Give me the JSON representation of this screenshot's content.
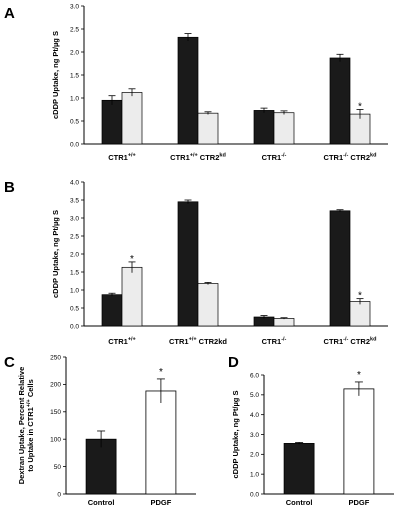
{
  "chart_data": [
    {
      "panel": "A",
      "type": "bar",
      "ylabel": "cDDP Uptake, ng Pt/µg S",
      "ylim": [
        0,
        3.0
      ],
      "yticks": [
        "0.0",
        "0.5",
        "1.0",
        "1.5",
        "2.0",
        "2.5",
        "3.0"
      ],
      "categories": [
        {
          "base": "CTR1",
          "sup": "+/+",
          "tail": "",
          "tail_sup": ""
        },
        {
          "base": "CTR1",
          "sup": "+/+",
          "tail": " CTR2",
          "tail_sup": "kd"
        },
        {
          "base": "CTR1",
          "sup": "-/-",
          "tail": "",
          "tail_sup": ""
        },
        {
          "base": "CTR1",
          "sup": "-/-",
          "tail": " CTR2",
          "tail_sup": "kd"
        }
      ],
      "series": [
        {
          "color": "#1a1a1a",
          "values": [
            0.95,
            2.32,
            0.73,
            1.87
          ],
          "errors": [
            0.1,
            0.08,
            0.05,
            0.08
          ]
        },
        {
          "color": "#ececec",
          "values": [
            1.12,
            0.67,
            0.68,
            0.65
          ],
          "errors": [
            0.08,
            0.03,
            0.04,
            0.1
          ]
        }
      ],
      "significance": [
        {
          "category": 3,
          "series": 1,
          "label": "*"
        }
      ]
    },
    {
      "panel": "B",
      "type": "bar",
      "ylabel": "cDDP Uptake, ng Pt/µg S",
      "ylim": [
        0,
        4.0
      ],
      "yticks": [
        "0.0",
        "0.5",
        "1.0",
        "1.5",
        "2.0",
        "2.5",
        "3.0",
        "3.5",
        "4.0"
      ],
      "categories": [
        {
          "base": "CTR1",
          "sup": "+/+",
          "tail": "",
          "tail_sup": ""
        },
        {
          "base": "CTR1",
          "sup": "+/+",
          "tail": " CTR2kd",
          "tail_sup": ""
        },
        {
          "base": "CTR1",
          "sup": "-/-",
          "tail": "",
          "tail_sup": ""
        },
        {
          "base": "CTR1",
          "sup": "-/-",
          "tail": " CTR2",
          "tail_sup": "kd"
        }
      ],
      "series": [
        {
          "color": "#1a1a1a",
          "values": [
            0.87,
            3.45,
            0.25,
            3.2
          ],
          "errors": [
            0.04,
            0.05,
            0.04,
            0.03
          ]
        },
        {
          "color": "#ececec",
          "values": [
            1.63,
            1.18,
            0.21,
            0.68
          ],
          "errors": [
            0.15,
            0.03,
            0.02,
            0.08
          ]
        }
      ],
      "significance": [
        {
          "category": 0,
          "series": 1,
          "label": "*"
        },
        {
          "category": 3,
          "series": 1,
          "label": "*"
        }
      ]
    },
    {
      "panel": "C",
      "type": "bar",
      "ylabel_lines": [
        "Dextran Uptake, Percent Relative",
        "to Uptake in CTR1"
      ],
      "ylabel_sup": "+/+",
      "ylabel_tail": " Cells",
      "ylim": [
        0,
        250
      ],
      "yticks": [
        "0",
        "50",
        "100",
        "150",
        "200",
        "250"
      ],
      "categories": [
        "Control",
        "PDGF"
      ],
      "bar_colors": [
        "#1a1a1a",
        "#ffffff"
      ],
      "values": [
        100,
        188
      ],
      "errors": [
        15,
        22
      ],
      "significance": [
        {
          "category": 1,
          "label": "*"
        }
      ]
    },
    {
      "panel": "D",
      "type": "bar",
      "ylabel": "cDDP Uptake, ng Pt/µg S",
      "ylim": [
        0,
        6.0
      ],
      "yticks": [
        "0.0",
        "1.0",
        "2.0",
        "3.0",
        "4.0",
        "5.0",
        "6.0"
      ],
      "categories": [
        "Control",
        "PDGF"
      ],
      "bar_colors": [
        "#1a1a1a",
        "#ffffff"
      ],
      "values": [
        2.55,
        5.3
      ],
      "errors": [
        0.05,
        0.35
      ],
      "significance": [
        {
          "category": 1,
          "label": "*"
        }
      ]
    }
  ]
}
